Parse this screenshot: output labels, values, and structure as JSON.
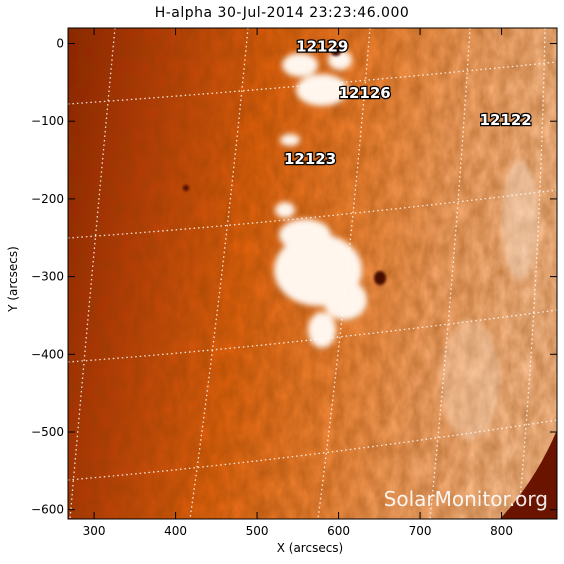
{
  "image": {
    "title": "H-alpha 30-Jul-2014 23:23:46.000",
    "xlabel": "X (arcsecs)",
    "ylabel": "Y (arcsecs)",
    "x_ticks": [
      "300",
      "400",
      "500",
      "600",
      "700",
      "800"
    ],
    "y_ticks": [
      "0",
      "−100",
      "−200",
      "−300",
      "−400",
      "−500",
      "−600"
    ],
    "xlim": [
      268,
      868
    ],
    "ylim": [
      -612,
      20
    ],
    "active_regions": [
      {
        "label": "12129",
        "x": 580,
        "y": -10
      },
      {
        "label": "12126",
        "x": 632,
        "y": -70
      },
      {
        "label": "12122",
        "x": 805,
        "y": -105
      },
      {
        "label": "12123",
        "x": 565,
        "y": -155
      }
    ],
    "watermark": "SolarMonitor.org",
    "colors": {
      "limb_dark": "#8a2000",
      "disk_mid": "#e06410",
      "disk_bright": "#f4b07a",
      "plage": "#fff4ea",
      "space": "#6a1400"
    }
  }
}
